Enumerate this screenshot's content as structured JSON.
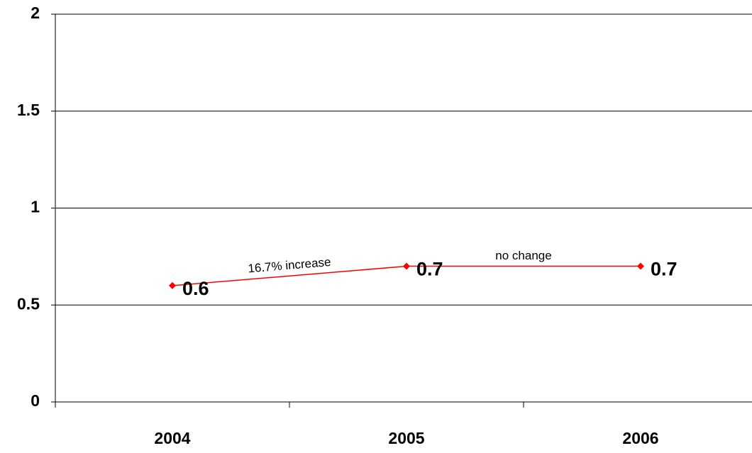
{
  "chart_data": {
    "type": "line",
    "categories": [
      "2004",
      "2005",
      "2006"
    ],
    "values": [
      0.6,
      0.7,
      0.7
    ],
    "color": "#ff0000",
    "ylim": [
      0,
      2
    ],
    "yticks": [
      0,
      0.5,
      1,
      1.5,
      2
    ],
    "grid": true,
    "annotations": [
      {
        "text": "16.7% increase",
        "between": [
          0,
          1
        ]
      },
      {
        "text": "no change",
        "between": [
          1,
          2
        ]
      }
    ]
  }
}
